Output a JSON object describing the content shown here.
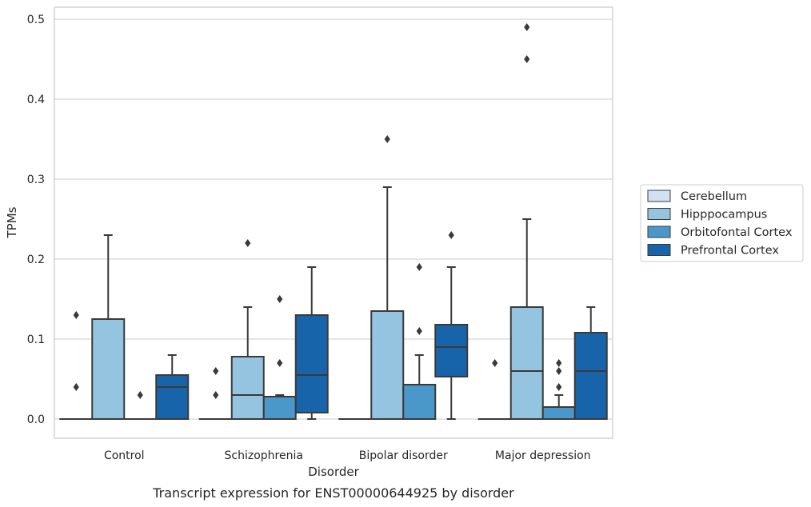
{
  "chart_data": {
    "type": "box",
    "caption": "Transcript expression for ENST00000644925 by disorder",
    "xlabel": "Disorder",
    "ylabel": "TPMs",
    "ylim": [
      -0.024,
      0.516
    ],
    "yticks": [
      0.0,
      0.1,
      0.2,
      0.3,
      0.4,
      0.5
    ],
    "ytick_labels": [
      "0.0",
      "0.1",
      "0.2",
      "0.3",
      "0.4",
      "0.5"
    ],
    "grid": true,
    "legend_placement": "right-center",
    "categories": [
      "Control",
      "Schizophrenia",
      "Bipolar disorder",
      "Major depression"
    ],
    "series": [
      {
        "name": "Cerebellum",
        "color": "#d0e1f2",
        "boxes": [
          {
            "q1": 0,
            "median": 0,
            "q3": 0,
            "whisker_low": 0,
            "whisker_high": 0,
            "outliers": [
              0.04,
              0.13
            ]
          },
          {
            "q1": 0,
            "median": 0,
            "q3": 0,
            "whisker_low": 0,
            "whisker_high": 0,
            "outliers": [
              0.03,
              0.06
            ]
          },
          {
            "q1": 0,
            "median": 0,
            "q3": 0,
            "whisker_low": 0,
            "whisker_high": 0,
            "outliers": []
          },
          {
            "q1": 0,
            "median": 0,
            "q3": 0,
            "whisker_low": 0,
            "whisker_high": 0,
            "outliers": [
              0.07
            ]
          }
        ]
      },
      {
        "name": "Hipppocampus",
        "color": "#94c4df",
        "boxes": [
          {
            "q1": 0,
            "median": 0,
            "q3": 0.125,
            "whisker_low": 0,
            "whisker_high": 0.23,
            "outliers": []
          },
          {
            "q1": 0,
            "median": 0.03,
            "q3": 0.078,
            "whisker_low": 0,
            "whisker_high": 0.14,
            "outliers": [
              0.22
            ]
          },
          {
            "q1": 0,
            "median": 0,
            "q3": 0.135,
            "whisker_low": 0,
            "whisker_high": 0.29,
            "outliers": [
              0.35
            ]
          },
          {
            "q1": 0,
            "median": 0.06,
            "q3": 0.14,
            "whisker_low": 0,
            "whisker_high": 0.25,
            "outliers": [
              0.45,
              0.49
            ]
          }
        ]
      },
      {
        "name": "Orbitofontal Cortex",
        "color": "#4a98c9",
        "boxes": [
          {
            "q1": 0,
            "median": 0,
            "q3": 0,
            "whisker_low": 0,
            "whisker_high": 0,
            "outliers": [
              0.03
            ]
          },
          {
            "q1": 0,
            "median": 0,
            "q3": 0.028,
            "whisker_low": 0,
            "whisker_high": 0.03,
            "outliers": [
              0.07,
              0.15
            ]
          },
          {
            "q1": 0,
            "median": 0,
            "q3": 0.043,
            "whisker_low": 0,
            "whisker_high": 0.08,
            "outliers": [
              0.11,
              0.19
            ]
          },
          {
            "q1": 0,
            "median": 0,
            "q3": 0.015,
            "whisker_low": 0,
            "whisker_high": 0.03,
            "outliers": [
              0.04,
              0.06,
              0.07
            ]
          }
        ]
      },
      {
        "name": "Prefrontal Cortex",
        "color": "#1764ab",
        "boxes": [
          {
            "q1": 0,
            "median": 0.04,
            "q3": 0.055,
            "whisker_low": 0,
            "whisker_high": 0.08,
            "outliers": []
          },
          {
            "q1": 0.008,
            "median": 0.055,
            "q3": 0.13,
            "whisker_low": 0,
            "whisker_high": 0.19,
            "outliers": []
          },
          {
            "q1": 0.053,
            "median": 0.09,
            "q3": 0.118,
            "whisker_low": 0,
            "whisker_high": 0.19,
            "outliers": [
              0.23
            ]
          },
          {
            "q1": 0,
            "median": 0.06,
            "q3": 0.108,
            "whisker_low": 0,
            "whisker_high": 0.14,
            "outliers": []
          }
        ]
      }
    ]
  }
}
